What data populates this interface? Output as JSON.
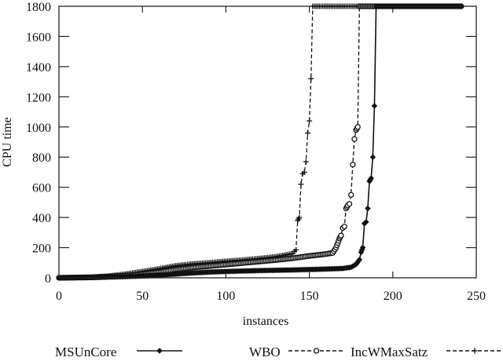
{
  "chart_data": {
    "type": "line",
    "title": "",
    "xlabel": "instances",
    "ylabel": "CPU time",
    "xlim": [
      0,
      250
    ],
    "ylim": [
      0,
      1800
    ],
    "xticks": [
      0,
      50,
      100,
      150,
      200,
      250
    ],
    "yticks": [
      0,
      200,
      400,
      600,
      800,
      1000,
      1200,
      1400,
      1600,
      1800
    ],
    "grid": false,
    "legend_position": "bottom",
    "series": [
      {
        "name": "MSUnCore",
        "style": "solid",
        "marker": "diamond",
        "x": [
          0,
          20,
          30,
          40,
          50,
          60,
          70,
          80,
          90,
          100,
          110,
          120,
          130,
          140,
          150,
          160,
          170,
          175,
          178,
          180,
          181,
          182,
          183,
          184,
          185,
          186,
          187,
          188,
          189,
          190,
          200,
          210,
          220,
          230,
          241
        ],
        "y": [
          0,
          2,
          5,
          8,
          12,
          18,
          25,
          32,
          38,
          42,
          45,
          48,
          50,
          52,
          55,
          58,
          62,
          70,
          90,
          120,
          170,
          200,
          360,
          370,
          460,
          640,
          660,
          800,
          1140,
          1800,
          1800,
          1800,
          1800,
          1800,
          1800
        ]
      },
      {
        "name": "WBO",
        "style": "dashed",
        "marker": "circle",
        "x": [
          0,
          20,
          30,
          40,
          50,
          60,
          70,
          80,
          90,
          100,
          110,
          120,
          130,
          140,
          150,
          160,
          164,
          166,
          167,
          168,
          169,
          170,
          171,
          172,
          173,
          174,
          175,
          176,
          177,
          178,
          179,
          180,
          181,
          182,
          190,
          200,
          241
        ],
        "y": [
          0,
          3,
          8,
          15,
          25,
          38,
          55,
          68,
          78,
          88,
          98,
          108,
          118,
          130,
          145,
          158,
          165,
          200,
          230,
          260,
          280,
          330,
          340,
          460,
          480,
          490,
          550,
          750,
          920,
          980,
          1000,
          1800,
          1800,
          1800,
          1800,
          1800,
          1800
        ]
      },
      {
        "name": "IncWMaxSatz",
        "style": "dashed",
        "marker": "plus",
        "x": [
          0,
          20,
          30,
          40,
          50,
          60,
          70,
          80,
          90,
          100,
          110,
          120,
          130,
          140,
          141,
          142,
          143,
          144,
          145,
          146,
          147,
          148,
          149,
          150,
          151,
          152,
          153,
          160,
          170,
          180,
          190,
          200,
          241
        ],
        "y": [
          0,
          5,
          12,
          25,
          42,
          60,
          80,
          92,
          100,
          110,
          118,
          128,
          140,
          160,
          175,
          185,
          380,
          400,
          620,
          690,
          700,
          770,
          960,
          1040,
          1320,
          1800,
          1800,
          1800,
          1800,
          1800,
          1800,
          1800,
          1800
        ]
      }
    ]
  },
  "axes": {
    "xlabel": "instances",
    "ylabel": "CPU time",
    "xtick_labels": [
      "0",
      "50",
      "100",
      "150",
      "200",
      "250"
    ],
    "ytick_labels": [
      "0",
      "200",
      "400",
      "600",
      "800",
      "1000",
      "1200",
      "1400",
      "1600",
      "1800"
    ]
  },
  "legend": {
    "items": [
      {
        "label": "MSUnCore",
        "style": "solid",
        "marker": "diamond"
      },
      {
        "label": "WBO",
        "style": "dashed",
        "marker": "circle"
      },
      {
        "label": "IncWMaxSatz",
        "style": "dashed",
        "marker": "plus"
      }
    ]
  },
  "colors": {
    "line": "#000000",
    "axis": "#222222",
    "background": "#ffffff"
  }
}
